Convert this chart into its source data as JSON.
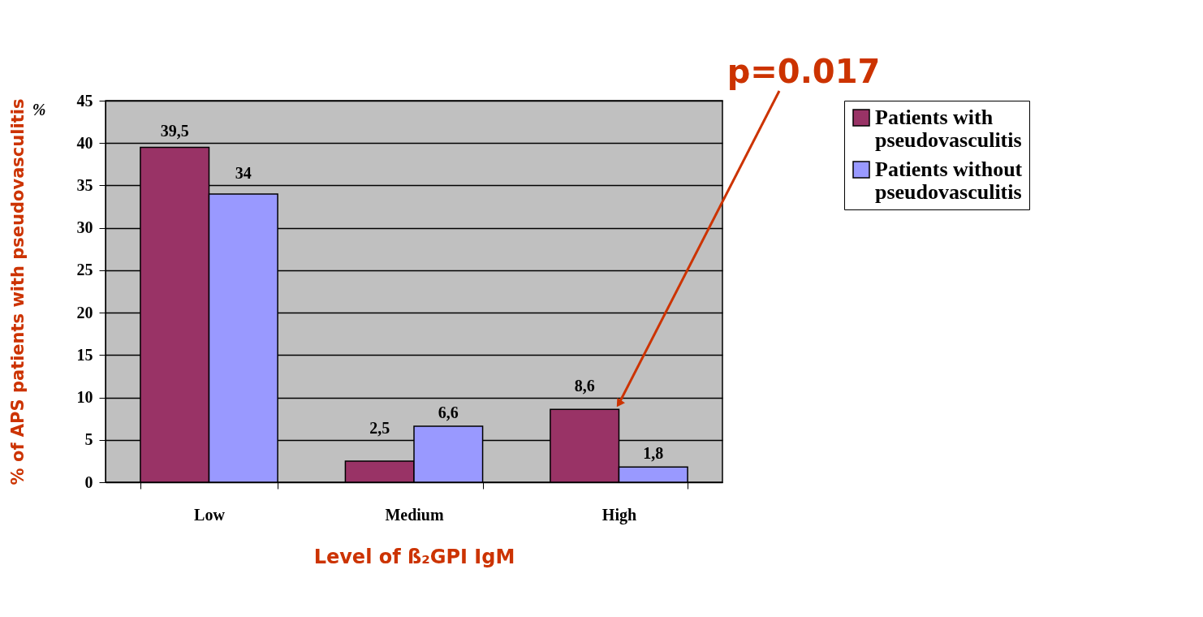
{
  "chart_data": {
    "type": "bar",
    "categories": [
      "Low",
      "Medium",
      "High"
    ],
    "series": [
      {
        "name": "Patients with pseudovasculitis",
        "color": "#993366",
        "values": [
          39.5,
          2.5,
          8.6
        ],
        "value_labels": [
          "39,5",
          "2,5",
          "8,6"
        ]
      },
      {
        "name": "Patients without pseudovasculitis",
        "color": "#9999ff",
        "values": [
          34,
          6.6,
          1.8
        ],
        "value_labels": [
          "34",
          "6,6",
          "1,8"
        ]
      }
    ],
    "xlabel": "Level of ß₂GPI IgM",
    "ylabel": "% of APS patients with pseudovasculitis",
    "ylim": [
      0,
      45
    ],
    "yticks": [
      0,
      5,
      10,
      15,
      20,
      25,
      30,
      35,
      40,
      45
    ],
    "grid": "y",
    "legend": "right",
    "annotations": [
      "%",
      {
        "text": "p=0.017",
        "x": "High",
        "y": 8.6
      }
    ]
  }
}
